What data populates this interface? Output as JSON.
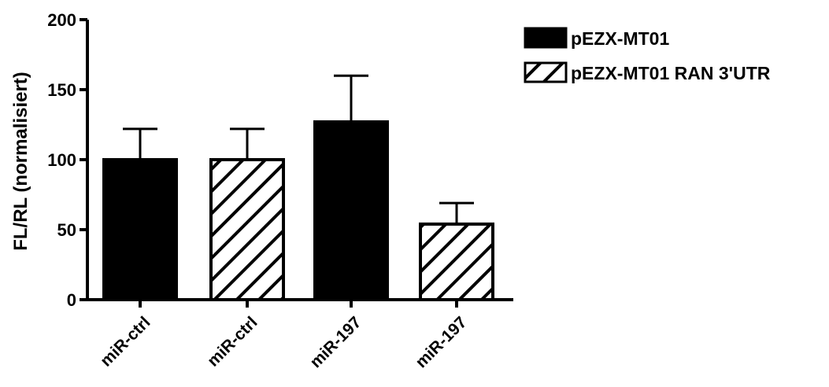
{
  "chart_data": {
    "type": "bar",
    "ylabel": "FL/RL (normalisiert)",
    "xlabel": "",
    "ylim": [
      0,
      200
    ],
    "yticks": [
      0,
      50,
      100,
      150,
      200
    ],
    "legend_position": "top-right",
    "grid": false,
    "series": [
      {
        "name": "pEZX-MT01",
        "fill": "solid"
      },
      {
        "name": "pEZX-MT01 RAN 3'UTR",
        "fill": "hatched"
      }
    ],
    "bars": [
      {
        "label": "miR-ctrl",
        "series": 0,
        "value": 100,
        "error": 22
      },
      {
        "label": "miR-ctrl",
        "series": 1,
        "value": 100,
        "error": 22
      },
      {
        "label": "miR-197",
        "series": 0,
        "value": 127,
        "error": 33
      },
      {
        "label": "miR-197",
        "series": 1,
        "value": 54,
        "error": 15
      }
    ],
    "colors": {
      "bar": "#000000",
      "axis": "#000000",
      "background": "#ffffff"
    }
  }
}
